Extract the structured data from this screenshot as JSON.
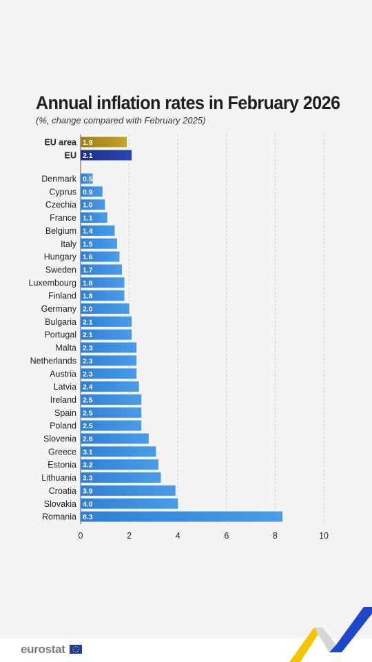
{
  "chart_data": {
    "type": "bar",
    "orientation": "horizontal",
    "title": "Annual inflation rates in February 2026",
    "subtitle": "(%, change compared with February 2025)",
    "xlim": [
      0,
      10
    ],
    "xticks": [
      "0",
      "2",
      "4",
      "6",
      "8",
      "10"
    ],
    "grid": "vertical-dashed",
    "aggregates": [
      {
        "name": "EU area",
        "value": 1.9,
        "label": "1.9",
        "color": "#b3931f"
      },
      {
        "name": "EU",
        "value": 2.1,
        "label": "2.1",
        "color": "#213a9e"
      }
    ],
    "countries": [
      {
        "name": "Denmark",
        "value": 0.5,
        "label": "0.5"
      },
      {
        "name": "Cyprus",
        "value": 0.9,
        "label": "0.9"
      },
      {
        "name": "Czechia",
        "value": 1.0,
        "label": "1.0"
      },
      {
        "name": "France",
        "value": 1.1,
        "label": "1.1"
      },
      {
        "name": "Belgium",
        "value": 1.4,
        "label": "1.4"
      },
      {
        "name": "Italy",
        "value": 1.5,
        "label": "1.5"
      },
      {
        "name": "Hungary",
        "value": 1.6,
        "label": "1.6"
      },
      {
        "name": "Sweden",
        "value": 1.7,
        "label": "1.7"
      },
      {
        "name": "Luxembourg",
        "value": 1.8,
        "label": "1.8"
      },
      {
        "name": "Finland",
        "value": 1.8,
        "label": "1.8"
      },
      {
        "name": "Germany",
        "value": 2.0,
        "label": "2.0"
      },
      {
        "name": "Bulgaria",
        "value": 2.1,
        "label": "2.1"
      },
      {
        "name": "Portugal",
        "value": 2.1,
        "label": "2.1"
      },
      {
        "name": "Malta",
        "value": 2.3,
        "label": "2.3"
      },
      {
        "name": "Netherlands",
        "value": 2.3,
        "label": "2.3"
      },
      {
        "name": "Austria",
        "value": 2.3,
        "label": "2.3"
      },
      {
        "name": "Latvia",
        "value": 2.4,
        "label": "2.4"
      },
      {
        "name": "Ireland",
        "value": 2.5,
        "label": "2.5"
      },
      {
        "name": "Spain",
        "value": 2.5,
        "label": "2.5"
      },
      {
        "name": "Poland",
        "value": 2.5,
        "label": "2.5"
      },
      {
        "name": "Slovenia",
        "value": 2.8,
        "label": "2.8"
      },
      {
        "name": "Greece",
        "value": 3.1,
        "label": "3.1"
      },
      {
        "name": "Estonia",
        "value": 3.2,
        "label": "3.2"
      },
      {
        "name": "Lithuania",
        "value": 3.3,
        "label": "3.3"
      },
      {
        "name": "Croatia",
        "value": 3.9,
        "label": "3.9"
      },
      {
        "name": "Slovakia",
        "value": 4.0,
        "label": "4.0"
      },
      {
        "name": "Romania",
        "value": 8.3,
        "label": "8.3"
      }
    ],
    "country_color": "#3d8ee0"
  },
  "footer": {
    "brand": "eurostat",
    "brand_color": "#7a7a7a",
    "icons": [
      "eu-flag-icon",
      "brand-swoosh-icon"
    ]
  }
}
